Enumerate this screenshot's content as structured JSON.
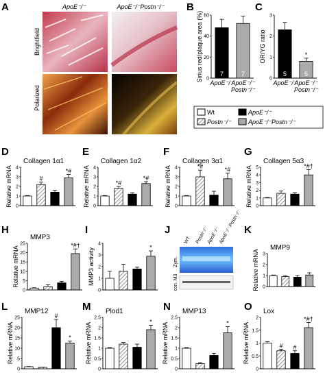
{
  "colors": {
    "wt": "#ffffff",
    "postn": "hatch",
    "apoe": "#000000",
    "apoe_postn": "#aaaaaa",
    "stroke": "#000000"
  },
  "panelA": {
    "label": "A",
    "col1": "ApoE⁻/⁻",
    "col2": "ApoE⁻/⁻Postn⁻/⁻",
    "row1": "Brightfield",
    "row2": "Polarized"
  },
  "legend": {
    "items": [
      {
        "key": "wt",
        "label": "Wt"
      },
      {
        "key": "apoe",
        "label": "ApoE⁻/⁻"
      },
      {
        "key": "postn",
        "label": "Postn⁻/⁻"
      },
      {
        "key": "apoe_postn",
        "label": "ApoE⁻/⁻Postn⁻/⁻"
      }
    ]
  },
  "panelJ": {
    "label": "J",
    "lanes": [
      "WT",
      "Postn⁻/⁻",
      "ApoE⁻/⁻",
      "ApoE⁻/⁻ Postn⁻/⁻"
    ],
    "row1": "Zym.",
    "row2": "con. M3"
  },
  "chart_data": [
    {
      "id": "B",
      "type": "bar",
      "ylabel": "Sirius red/plaque area (%)",
      "ylim": [
        0,
        60
      ],
      "yticks": [
        0,
        20,
        40,
        60
      ],
      "categories": [
        "ApoE⁻/⁻",
        "ApoE⁻/⁻Postn⁻/⁻"
      ],
      "keys": [
        "apoe",
        "apoe_postn"
      ],
      "values": [
        48,
        52
      ],
      "errors": [
        8,
        7
      ],
      "n": [
        "7",
        "7"
      ],
      "marks": [
        "",
        ""
      ]
    },
    {
      "id": "C",
      "type": "bar",
      "ylabel": "OR/YG ratio",
      "ylim": [
        0,
        3
      ],
      "yticks": [
        0,
        1,
        2,
        3
      ],
      "categories": [
        "ApoE⁻/⁻",
        "ApoE⁻/⁻Postn⁻/⁻"
      ],
      "keys": [
        "apoe",
        "apoe_postn"
      ],
      "values": [
        2.3,
        0.8
      ],
      "errors": [
        0.35,
        0.15
      ],
      "n": [
        "5",
        "5"
      ],
      "marks": [
        "",
        "*"
      ]
    },
    {
      "id": "D",
      "type": "bar",
      "title": "Collagen 1α1",
      "ylabel": "Relative mRNA",
      "ylim": [
        0,
        4
      ],
      "yticks": [
        0,
        1,
        2,
        3,
        4
      ],
      "keys": [
        "wt",
        "postn",
        "apoe",
        "apoe_postn"
      ],
      "values": [
        1.0,
        2.2,
        1.4,
        2.9
      ],
      "errors": [
        0.05,
        0.25,
        0.2,
        0.35
      ],
      "marks": [
        "",
        "#",
        "",
        "*#"
      ]
    },
    {
      "id": "E",
      "type": "bar",
      "title": "Collagen 1α2",
      "ylabel": "Relative mRNA",
      "ylim": [
        0,
        4
      ],
      "yticks": [
        0,
        1,
        2,
        3,
        4
      ],
      "keys": [
        "wt",
        "postn",
        "apoe",
        "apoe_postn"
      ],
      "values": [
        1.0,
        1.8,
        1.2,
        2.3
      ],
      "errors": [
        0.05,
        0.2,
        0.15,
        0.2
      ],
      "marks": [
        "",
        "*#",
        "",
        "*#"
      ]
    },
    {
      "id": "F",
      "type": "bar",
      "title": "Collagen 3α1",
      "ylabel": "Relative mRNA",
      "ylim": [
        0,
        4
      ],
      "yticks": [
        0,
        1,
        2,
        3,
        4
      ],
      "keys": [
        "wt",
        "postn",
        "apoe",
        "apoe_postn"
      ],
      "values": [
        1.0,
        3.0,
        1.1,
        2.8
      ],
      "errors": [
        0.05,
        0.7,
        0.4,
        0.6
      ],
      "marks": [
        "",
        "*#",
        "",
        "*#"
      ]
    },
    {
      "id": "G",
      "type": "bar",
      "title": "Collagen 5α3",
      "ylabel": "Relative mRNA",
      "ylim": [
        0,
        5
      ],
      "yticks": [
        0,
        1,
        2,
        3,
        4,
        5
      ],
      "keys": [
        "wt",
        "postn",
        "apoe",
        "apoe_postn"
      ],
      "values": [
        1.0,
        1.6,
        1.5,
        4.0
      ],
      "errors": [
        0.05,
        0.3,
        0.2,
        0.7
      ],
      "marks": [
        "",
        "",
        "",
        "*#†"
      ]
    },
    {
      "id": "H",
      "type": "bar",
      "title": "MMP3",
      "ylabel": "Relative mRNA",
      "ylim": [
        0,
        25
      ],
      "yticks": [
        0,
        5,
        10,
        15,
        20,
        25
      ],
      "keys": [
        "wt",
        "postn",
        "apoe",
        "apoe_postn"
      ],
      "values": [
        1.0,
        1.8,
        3.8,
        19.5
      ],
      "errors": [
        0.2,
        1.0,
        0.8,
        2.5
      ],
      "marks": [
        "",
        "",
        "",
        "*#†"
      ]
    },
    {
      "id": "I",
      "type": "bar",
      "ylabel": "MMP3 activity",
      "ylim": [
        0,
        4
      ],
      "yticks": [
        0,
        1,
        2,
        3,
        4
      ],
      "keys": [
        "wt",
        "postn",
        "apoe",
        "apoe_postn"
      ],
      "values": [
        1.0,
        1.6,
        1.8,
        2.9
      ],
      "errors": [
        0.6,
        0.6,
        0.15,
        0.45
      ],
      "marks": [
        "",
        "",
        "",
        "*"
      ]
    },
    {
      "id": "K",
      "type": "bar",
      "title": "MMP9",
      "ylabel": "Relative mRNA",
      "ylim": [
        0,
        3
      ],
      "yticks": [
        0,
        1,
        2,
        3
      ],
      "keys": [
        "wt",
        "postn",
        "apoe",
        "apoe_postn"
      ],
      "values": [
        1.0,
        0.9,
        0.85,
        1.05
      ],
      "errors": [
        0.05,
        0.08,
        0.15,
        0.2
      ],
      "marks": [
        "",
        "",
        "",
        ""
      ]
    },
    {
      "id": "L",
      "type": "bar",
      "title": "MMP12",
      "ylabel": "Relative mRNA",
      "ylim": [
        0,
        25
      ],
      "yticks": [
        0,
        5,
        10,
        15,
        20,
        25
      ],
      "keys": [
        "wt",
        "postn",
        "apoe",
        "apoe_postn"
      ],
      "values": [
        1.0,
        0.7,
        20.0,
        12.5
      ],
      "errors": [
        0.1,
        0.1,
        4.0,
        1.0
      ],
      "marks": [
        "",
        "",
        "#",
        "*"
      ]
    },
    {
      "id": "M",
      "type": "bar",
      "title": "Plod1",
      "ylabel": "Relative mRNA",
      "ylim": [
        0,
        2.5
      ],
      "yticks": [
        0,
        0.5,
        1.0,
        1.5,
        2.0,
        2.5
      ],
      "keys": [
        "wt",
        "postn",
        "apoe",
        "apoe_postn"
      ],
      "values": [
        1.0,
        1.2,
        1.05,
        1.9
      ],
      "errors": [
        0.03,
        0.08,
        0.15,
        0.22
      ],
      "marks": [
        "",
        "",
        "",
        "*"
      ]
    },
    {
      "id": "N",
      "type": "bar",
      "title": "MMP13",
      "ylabel": "Relative mRNA",
      "ylim": [
        0,
        2.5
      ],
      "yticks": [
        0,
        0.5,
        1.0,
        1.5,
        2.0,
        2.5
      ],
      "keys": [
        "wt",
        "postn",
        "apoe",
        "apoe_postn"
      ],
      "values": [
        1.0,
        0.25,
        0.65,
        1.75
      ],
      "errors": [
        0.03,
        0.05,
        0.1,
        0.3
      ],
      "marks": [
        "",
        "",
        "",
        "*"
      ]
    },
    {
      "id": "O",
      "type": "bar",
      "title": "Lox",
      "ylabel": "Relative mRNA",
      "ylim": [
        0,
        2
      ],
      "yticks": [
        0,
        0.5,
        1.0,
        1.5,
        2.0
      ],
      "keys": [
        "wt",
        "postn",
        "apoe",
        "apoe_postn"
      ],
      "values": [
        1.0,
        0.7,
        0.6,
        1.6
      ],
      "errors": [
        0.05,
        0.06,
        0.1,
        0.2
      ],
      "marks": [
        "",
        "#",
        "#",
        "*#†"
      ]
    }
  ]
}
